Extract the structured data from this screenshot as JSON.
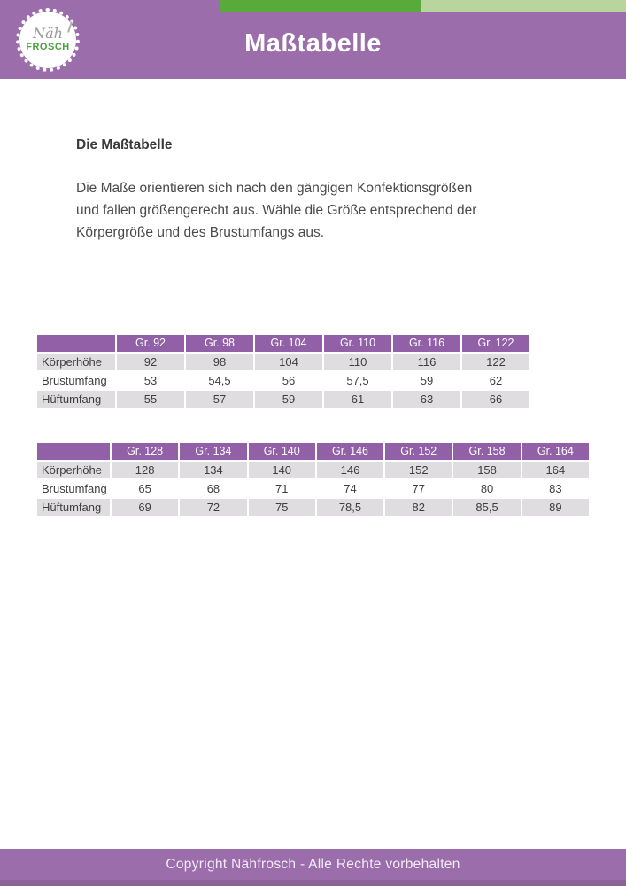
{
  "header": {
    "title": "Maßtabelle",
    "logo": {
      "script": "Näh",
      "brand": "FROSCH"
    }
  },
  "content": {
    "heading": "Die Maßtabelle",
    "paragraph_lines": [
      "Die Maße orientieren sich nach den gängigen Konfektionsgrößen",
      "und fallen größengerecht aus. Wähle die Größe entsprechend der",
      "Körpergröße und des Brustumfangs aus."
    ]
  },
  "tables": [
    {
      "name": "sizes-92-122",
      "columns": [
        "",
        "Gr. 92",
        "Gr. 98",
        "Gr. 104",
        "Gr. 110",
        "Gr. 116",
        "Gr. 122"
      ],
      "rows": [
        {
          "label": "Körperhöhe",
          "values": [
            "92",
            "98",
            "104",
            "110",
            "116",
            "122"
          ]
        },
        {
          "label": "Brustumfang",
          "values": [
            "53",
            "54,5",
            "56",
            "57,5",
            "59",
            "62"
          ]
        },
        {
          "label": "Hüftumfang",
          "values": [
            "55",
            "57",
            "59",
            "61",
            "63",
            "66"
          ]
        }
      ]
    },
    {
      "name": "sizes-128-164",
      "columns": [
        "",
        "Gr. 128",
        "Gr. 134",
        "Gr. 140",
        "Gr. 146",
        "Gr. 152",
        "Gr. 158",
        "Gr. 164"
      ],
      "rows": [
        {
          "label": "Körperhöhe",
          "values": [
            "128",
            "134",
            "140",
            "146",
            "152",
            "158",
            "164"
          ]
        },
        {
          "label": "Brustumfang",
          "values": [
            "65",
            "68",
            "71",
            "74",
            "77",
            "80",
            "83"
          ]
        },
        {
          "label": "Hüftumfang",
          "values": [
            "69",
            "72",
            "75",
            "78,5",
            "82",
            "85,5",
            "89"
          ]
        }
      ]
    }
  ],
  "footer": {
    "text": "Copyright Nähfrosch - Alle Rechte vorbehalten"
  },
  "colors": {
    "header_purple": "#9b6dab",
    "table_header_purple": "#9160a7",
    "accent_green_dark": "#58aa3b",
    "accent_green_light": "#b8d59d",
    "brand_green": "#4ba23d",
    "row_gray": "#dfdde0",
    "footer_strip": "#8c6398"
  }
}
